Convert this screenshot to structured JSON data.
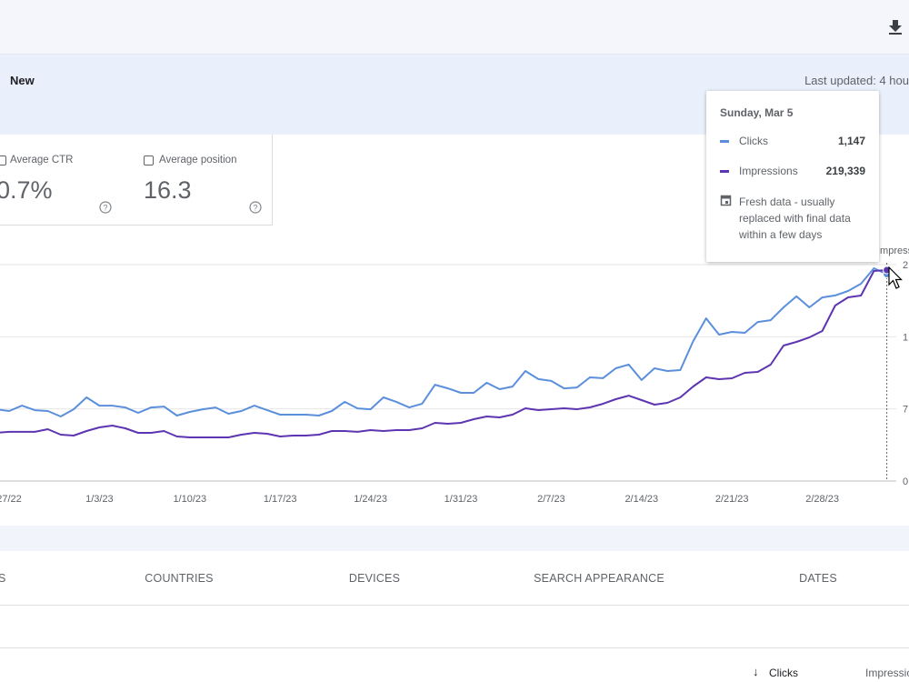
{
  "header": {
    "badge": "New",
    "last_updated": "Last updated: 4 hou"
  },
  "metrics": [
    {
      "label": "Average CTR",
      "value": "0.7%"
    },
    {
      "label": "Average position",
      "value": "16.3"
    }
  ],
  "chart_data": {
    "type": "line",
    "y2_label": "Impress",
    "categories": [
      null,
      "27/22",
      null,
      null,
      null,
      null,
      null,
      null,
      "1/3/23",
      null,
      null,
      null,
      null,
      null,
      null,
      "1/10/23",
      null,
      null,
      null,
      null,
      null,
      null,
      "1/17/23",
      null,
      null,
      null,
      null,
      null,
      null,
      "1/24/23",
      null,
      null,
      null,
      null,
      null,
      null,
      "1/31/23",
      null,
      null,
      null,
      null,
      null,
      null,
      "2/7/23",
      null,
      null,
      null,
      null,
      null,
      null,
      "2/14/23",
      null,
      null,
      null,
      null,
      null,
      null,
      "2/21/23",
      null,
      null,
      null,
      null,
      null,
      null,
      "2/28/23",
      null,
      null,
      null,
      null,
      null
    ],
    "ylim": [
      0,
      1200
    ],
    "y2lim": [
      0,
      225000
    ],
    "y2ticks": [
      {
        "value": 225000,
        "label": "2"
      },
      {
        "value": 150000,
        "label": "1"
      },
      {
        "value": 75000,
        "label": "7"
      },
      0
    ],
    "grid": true,
    "series": [
      {
        "name": "Clicks",
        "color": "#5b8fdc",
        "values": [
          398,
          388,
          418,
          393,
          388,
          358,
          398,
          464,
          418,
          418,
          408,
          378,
          408,
          413,
          363,
          383,
          398,
          408,
          373,
          388,
          418,
          393,
          368,
          368,
          368,
          363,
          388,
          439,
          403,
          398,
          464,
          439,
          408,
          429,
          534,
          514,
          489,
          489,
          545,
          509,
          524,
          610,
          565,
          555,
          514,
          519,
          575,
          570,
          625,
          646,
          560,
          625,
          610,
          615,
          776,
          902,
          812,
          827,
          822,
          882,
          892,
          963,
          1024,
          963,
          1018,
          1029,
          1054,
          1094,
          1180,
          1147
        ]
      },
      {
        "name": "Impressions",
        "color": "#5e35b1",
        "axis": "y2",
        "values": [
          50100,
          51100,
          51100,
          51100,
          53900,
          48200,
          47300,
          52000,
          55800,
          57700,
          54800,
          50100,
          50100,
          52000,
          46300,
          45400,
          45400,
          45400,
          45400,
          48200,
          50100,
          49200,
          46300,
          47300,
          47300,
          48200,
          52000,
          52000,
          51100,
          52900,
          52000,
          52900,
          52900,
          54800,
          60500,
          59600,
          60500,
          64300,
          67100,
          66200,
          69000,
          75600,
          73700,
          74700,
          75600,
          74700,
          76600,
          80300,
          85100,
          88800,
          84100,
          79400,
          81300,
          87000,
          98300,
          107800,
          105900,
          106800,
          112500,
          113400,
          121000,
          140900,
          144600,
          149400,
          156000,
          182500,
          191000,
          192900,
          218400,
          219339
        ]
      }
    ],
    "tooltip": {
      "title": "Sunday, Mar 5",
      "values": [
        "1,147",
        "219,339"
      ],
      "note": "Fresh data - usually replaced with final data within a few days"
    }
  },
  "tabs": [
    "S",
    "COUNTRIES",
    "DEVICES",
    "SEARCH APPEARANCE",
    "DATES"
  ],
  "table": {
    "columns": [
      "Clicks",
      "Impressio"
    ]
  }
}
